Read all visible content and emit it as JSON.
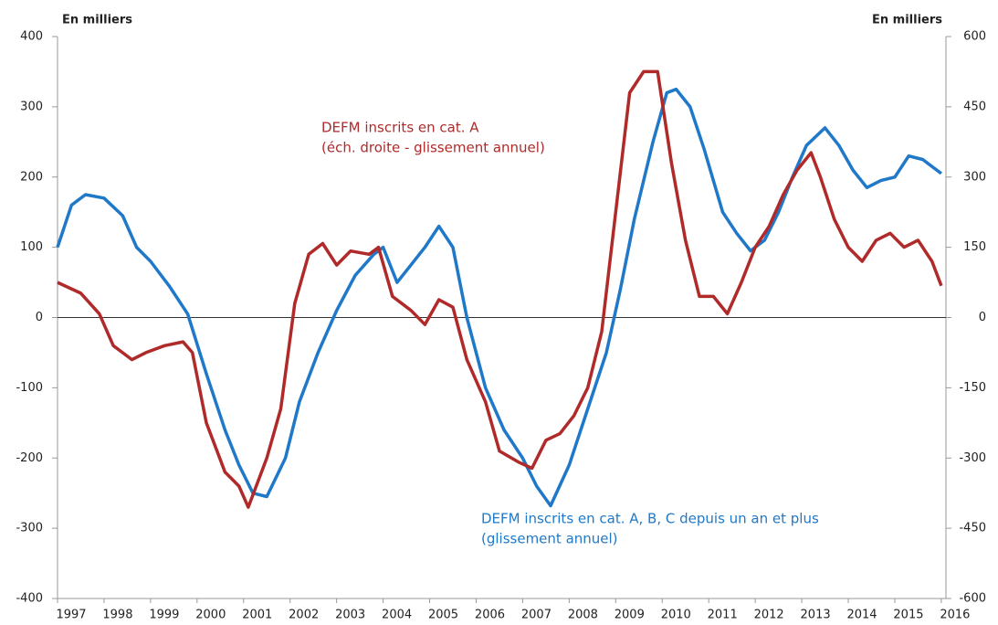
{
  "chart_data": {
    "type": "line",
    "y_label": "En milliers",
    "y2_label": "En milliers",
    "xlim": [
      1997,
      2016.1
    ],
    "xticks": [
      1997,
      1998,
      1999,
      2000,
      2001,
      2002,
      2003,
      2004,
      2005,
      2006,
      2007,
      2008,
      2009,
      2010,
      2011,
      2012,
      2013,
      2014,
      2015,
      2016
    ],
    "ylim": [
      -400,
      400
    ],
    "yticks": [
      -400,
      -300,
      -200,
      -100,
      0,
      100,
      200,
      300,
      400
    ],
    "y2lim": [
      -600,
      600
    ],
    "y2ticks": [
      -600,
      -450,
      -300,
      -150,
      0,
      150,
      300,
      450,
      600
    ],
    "zero_line": true,
    "series": [
      {
        "name": "DEFM inscrits en cat. A, B, C depuis un an et plus (glissement annuel)",
        "color": "#1f78c8",
        "axis": "y",
        "x": [
          1997.0,
          1997.3,
          1997.6,
          1998.0,
          1998.4,
          1998.7,
          1999.0,
          1999.4,
          1999.8,
          2000.2,
          2000.6,
          2000.9,
          2001.2,
          2001.5,
          2001.9,
          2002.2,
          2002.6,
          2003.0,
          2003.4,
          2003.8,
          2004.0,
          2004.3,
          2004.6,
          2004.9,
          2005.2,
          2005.5,
          2005.8,
          2006.2,
          2006.6,
          2007.0,
          2007.3,
          2007.6,
          2008.0,
          2008.4,
          2008.8,
          2009.1,
          2009.4,
          2009.8,
          2010.1,
          2010.3,
          2010.6,
          2010.9,
          2011.3,
          2011.6,
          2011.9,
          2012.2,
          2012.5,
          2012.8,
          2013.1,
          2013.5,
          2013.8,
          2014.1,
          2014.4,
          2014.7,
          2015.0,
          2015.3,
          2015.6,
          2016.0
        ],
        "values": [
          100,
          160,
          175,
          170,
          145,
          100,
          80,
          45,
          5,
          -80,
          -160,
          -210,
          -250,
          -255,
          -200,
          -120,
          -50,
          10,
          60,
          90,
          100,
          50,
          75,
          100,
          130,
          100,
          0,
          -100,
          -160,
          -200,
          -240,
          -268,
          -210,
          -130,
          -50,
          40,
          140,
          250,
          320,
          325,
          300,
          240,
          150,
          120,
          95,
          110,
          150,
          200,
          245,
          270,
          245,
          210,
          185,
          195,
          200,
          230,
          225,
          205
        ]
      },
      {
        "name": "DEFM inscrits en cat. A (éch. droite - glissement annuel)",
        "color": "#b02a2a",
        "axis": "y2",
        "x": [
          1997.0,
          1997.5,
          1997.9,
          1998.2,
          1998.6,
          1998.9,
          1999.3,
          1999.7,
          1999.9,
          2000.2,
          2000.6,
          2000.9,
          2001.1,
          2001.5,
          2001.8,
          2002.1,
          2002.4,
          2002.7,
          2003.0,
          2003.3,
          2003.7,
          2003.9,
          2004.2,
          2004.6,
          2004.9,
          2005.2,
          2005.5,
          2005.8,
          2006.2,
          2006.5,
          2006.9,
          2007.2,
          2007.5,
          2007.8,
          2008.1,
          2008.4,
          2008.7,
          2009.0,
          2009.3,
          2009.6,
          2009.9,
          2010.2,
          2010.5,
          2010.8,
          2011.1,
          2011.4,
          2011.7,
          2012.0,
          2012.3,
          2012.6,
          2012.9,
          2013.2,
          2013.4,
          2013.7,
          2014.0,
          2014.3,
          2014.6,
          2014.9,
          2015.2,
          2015.5,
          2015.8,
          2016.0
        ],
        "values": [
          75,
          52,
          8,
          -60,
          -90,
          -75,
          -60,
          -52,
          -75,
          -225,
          -330,
          -360,
          -405,
          -300,
          -195,
          30,
          135,
          158,
          112,
          142,
          135,
          150,
          45,
          15,
          -15,
          38,
          22,
          -90,
          -180,
          -285,
          -308,
          -322,
          -262,
          -248,
          -210,
          -150,
          -30,
          225,
          480,
          525,
          525,
          330,
          165,
          45,
          45,
          8,
          75,
          150,
          195,
          262,
          315,
          352,
          300,
          210,
          150,
          120,
          165,
          180,
          150,
          165,
          120,
          68
        ]
      }
    ],
    "annotations": [
      {
        "lines": [
          "DEFM inscrits en cat. A",
          "(éch. droite - glissement annuel)"
        ],
        "color": "#b02a2a"
      },
      {
        "lines": [
          "DEFM inscrits en cat. A, B, C depuis un an et plus",
          "(glissement annuel)"
        ],
        "color": "#1f78c8"
      }
    ]
  }
}
